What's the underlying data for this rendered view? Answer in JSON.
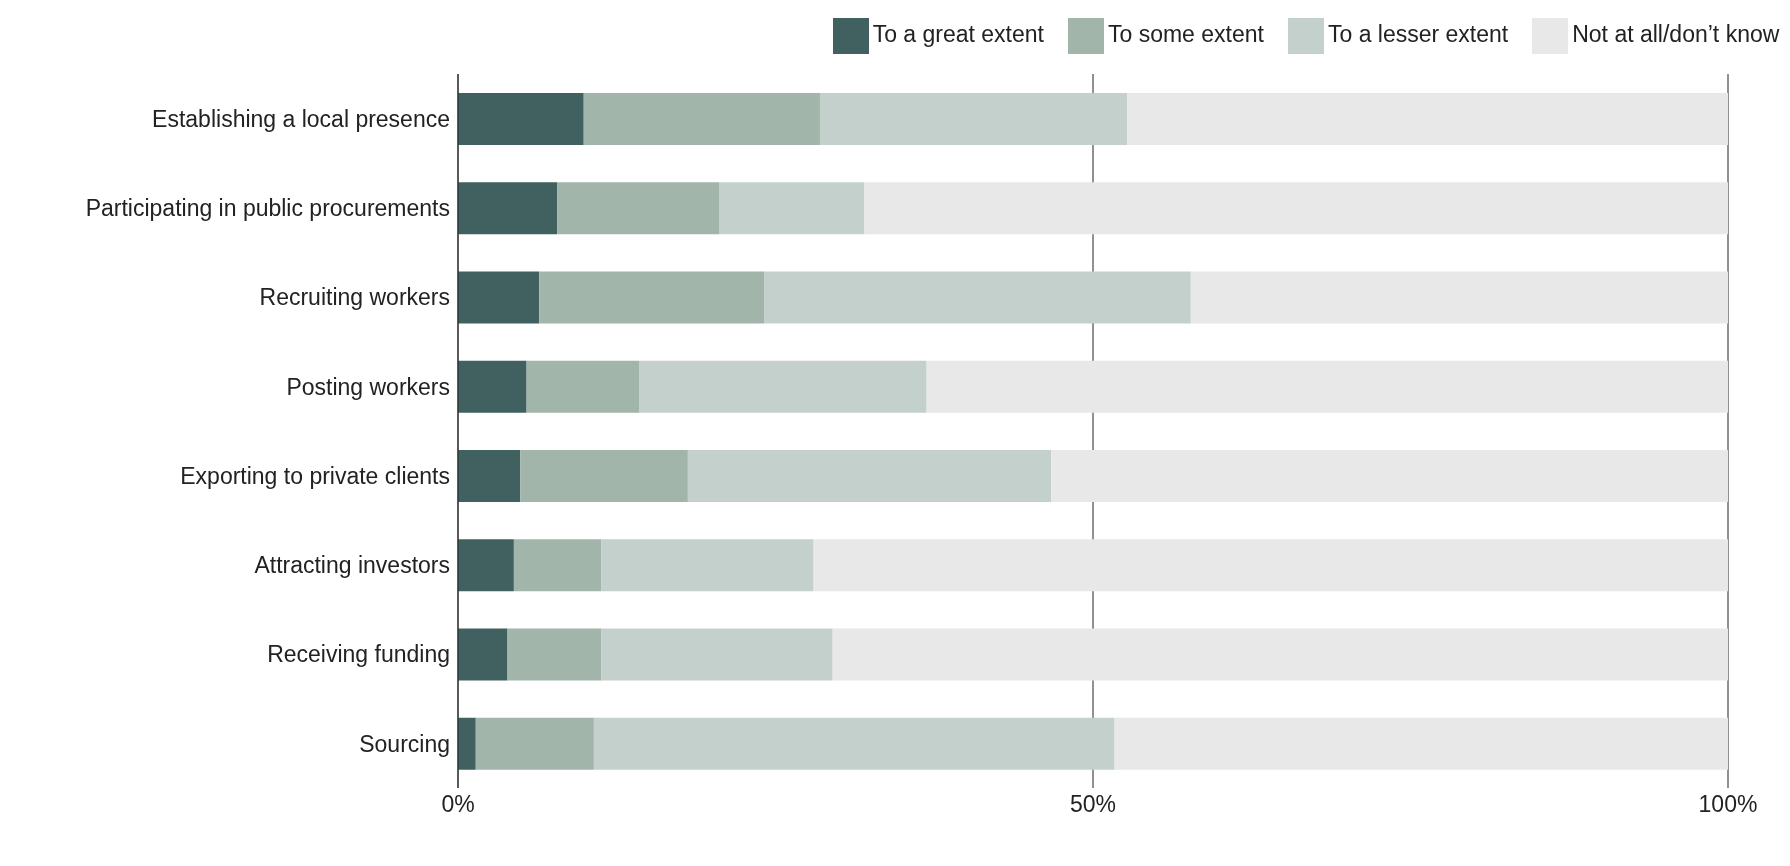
{
  "chart_data": {
    "type": "bar",
    "orientation": "horizontal",
    "stacked": true,
    "categories": [
      "Establishing a local presence",
      "Participating in public procurements",
      "Recruiting workers",
      "Posting workers",
      "Exporting to private clients",
      "Attracting investors",
      "Receiving funding",
      "Sourcing"
    ],
    "series": [
      {
        "name": "To a great extent",
        "color": "#416060",
        "values": [
          9.9,
          7.8,
          6.4,
          5.4,
          4.9,
          4.4,
          3.9,
          1.4
        ]
      },
      {
        "name": "To some extent",
        "color": "#a2b5ab",
        "values": [
          18.6,
          12.8,
          17.7,
          8.9,
          13.2,
          6.9,
          7.4,
          9.3
        ]
      },
      {
        "name": "To a lesser extent",
        "color": "#c3d0cb",
        "values": [
          24.2,
          11.4,
          33.6,
          22.6,
          28.6,
          16.7,
          18.2,
          41.0
        ]
      },
      {
        "name": "Not at all/don’t know",
        "color": "#e8e8e8",
        "values": [
          47.3,
          68.0,
          42.3,
          63.1,
          53.3,
          72.0,
          70.5,
          48.3
        ]
      }
    ],
    "xlim": [
      0,
      100
    ],
    "xticks": [
      {
        "value": 0,
        "label": "0%"
      },
      {
        "value": 50,
        "label": "50%"
      },
      {
        "value": 100,
        "label": "100%"
      }
    ],
    "grid": "x",
    "legend": "top"
  }
}
